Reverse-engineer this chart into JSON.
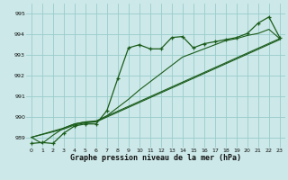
{
  "xlabel": "Graphe pression niveau de la mer (hPa)",
  "bg_color": "#cce8e8",
  "grid_color": "#99cccc",
  "line_color": "#1a5c1a",
  "xlim": [
    -0.5,
    23.5
  ],
  "ylim": [
    988.5,
    995.5
  ],
  "yticks": [
    989,
    990,
    991,
    992,
    993,
    994,
    995
  ],
  "xticks": [
    0,
    1,
    2,
    3,
    4,
    5,
    6,
    7,
    8,
    9,
    10,
    11,
    12,
    13,
    14,
    15,
    16,
    17,
    18,
    19,
    20,
    21,
    22,
    23
  ],
  "line1_x": [
    0,
    1,
    2,
    3,
    4,
    5,
    6,
    7,
    8,
    9,
    10,
    11,
    12,
    13,
    14,
    15,
    16,
    17,
    18,
    19,
    20,
    21,
    22,
    23
  ],
  "line1_y": [
    988.7,
    988.75,
    988.7,
    989.2,
    989.55,
    989.65,
    989.65,
    990.3,
    991.85,
    993.35,
    993.5,
    993.3,
    993.3,
    993.85,
    993.9,
    993.35,
    993.55,
    993.65,
    993.75,
    993.85,
    994.05,
    994.55,
    994.85,
    993.85
  ],
  "line2_x": [
    0,
    1,
    2,
    3,
    4,
    5,
    6,
    7,
    8,
    9,
    10,
    11,
    12,
    13,
    14,
    15,
    16,
    17,
    18,
    19,
    20,
    21,
    22,
    23
  ],
  "line2_y": [
    989.0,
    988.7,
    989.1,
    989.45,
    989.65,
    989.75,
    989.75,
    990.05,
    990.45,
    990.85,
    991.3,
    991.7,
    992.1,
    992.5,
    992.9,
    993.1,
    993.3,
    993.5,
    993.7,
    993.8,
    993.95,
    994.05,
    994.25,
    993.8
  ],
  "line3_x": [
    0,
    3,
    4,
    5,
    6,
    23
  ],
  "line3_y": [
    989.0,
    989.45,
    989.65,
    989.75,
    989.8,
    993.8
  ],
  "line4_x": [
    0,
    3,
    4,
    5,
    6,
    23
  ],
  "line4_y": [
    989.0,
    989.4,
    989.6,
    989.7,
    989.75,
    993.75
  ]
}
